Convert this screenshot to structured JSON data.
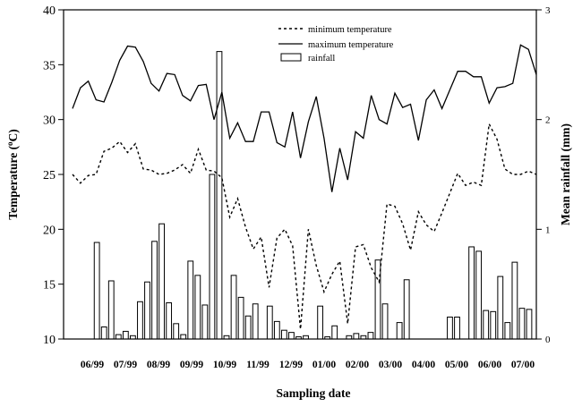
{
  "chart_data": {
    "type": "bar+line",
    "xlabel": "Sampling date",
    "ylabel_left": "Temperature (",
    "ylabel_left_sup": "o",
    "ylabel_left_end": "C)",
    "ylabel_right": "Mean rainfall (mm)",
    "ylim_left": [
      10,
      40
    ],
    "ylim_right": [
      0,
      3
    ],
    "yticks_left": [
      "10",
      "15",
      "20",
      "25",
      "30",
      "35",
      "40"
    ],
    "yticks_right": [
      "0",
      "1",
      "2",
      "3"
    ],
    "x_month_labels": [
      "06/99",
      "07/99",
      "08/99",
      "09/99",
      "10/99",
      "11/99",
      "12/99",
      "01/00",
      "02/00",
      "03/00",
      "04/00",
      "05/00",
      "06/00",
      "07/00"
    ],
    "legend": {
      "min": "minimum temperature",
      "max": "maximum temperature",
      "rain": "rainfall"
    },
    "series": [
      {
        "name": "maximum temperature",
        "type": "line",
        "axis": "left",
        "values": [
          31.0,
          32.9,
          33.5,
          31.8,
          31.6,
          33.4,
          35.4,
          36.7,
          36.6,
          35.3,
          33.3,
          32.6,
          34.2,
          34.1,
          32.2,
          31.7,
          33.1,
          33.2,
          30.0,
          32.5,
          28.3,
          29.7,
          28.0,
          28.0,
          30.7,
          30.7,
          27.9,
          27.5,
          30.7,
          26.5,
          29.8,
          32.1,
          28.3,
          23.4,
          27.4,
          24.5,
          28.9,
          28.3,
          32.2,
          30.0,
          29.6,
          32.4,
          31.1,
          31.4,
          28.1,
          31.8,
          32.7,
          31.0,
          32.7,
          34.4,
          34.4,
          33.9,
          33.9,
          31.5,
          32.9,
          33.0,
          33.3,
          36.8,
          36.4,
          34.1
        ]
      },
      {
        "name": "minimum temperature",
        "type": "line",
        "axis": "left",
        "values": [
          25.0,
          24.2,
          24.9,
          25.0,
          27.1,
          27.4,
          28.0,
          27.0,
          27.8,
          25.5,
          25.4,
          25.0,
          25.1,
          25.4,
          25.9,
          25.1,
          27.3,
          25.4,
          25.3,
          24.7,
          21.1,
          22.8,
          20.2,
          18.2,
          19.3,
          14.7,
          19.2,
          20.0,
          18.5,
          10.9,
          20.0,
          16.7,
          14.3,
          15.9,
          17.1,
          11.4,
          18.4,
          18.6,
          16.5,
          15.2,
          22.3,
          22.1,
          20.5,
          18.1,
          21.6,
          20.4,
          19.8,
          21.5,
          23.3,
          25.1,
          24.0,
          24.3,
          24.0,
          29.6,
          28.2,
          25.5,
          25.0,
          25.0,
          25.3,
          25.0
        ]
      },
      {
        "name": "rainfall",
        "type": "bar",
        "axis": "right",
        "values": [
          0.0,
          0.0,
          0.0,
          0.88,
          0.11,
          0.53,
          0.04,
          0.07,
          0.03,
          0.34,
          0.52,
          0.89,
          1.05,
          0.33,
          0.14,
          0.04,
          0.71,
          0.58,
          0.31,
          1.5,
          2.62,
          0.03,
          0.58,
          0.38,
          0.21,
          0.32,
          0.0,
          0.3,
          0.16,
          0.08,
          0.06,
          0.02,
          0.03,
          0.0,
          0.3,
          0.02,
          0.12,
          0.0,
          0.03,
          0.05,
          0.03,
          0.06,
          0.72,
          0.32,
          0.0,
          0.15,
          0.54,
          0.0,
          0.0,
          0.0,
          0.0,
          0.0,
          0.2,
          0.2,
          0.0,
          0.84,
          0.8,
          0.26,
          0.25,
          0.57,
          0.15,
          0.7,
          0.28,
          0.27
        ]
      }
    ]
  }
}
